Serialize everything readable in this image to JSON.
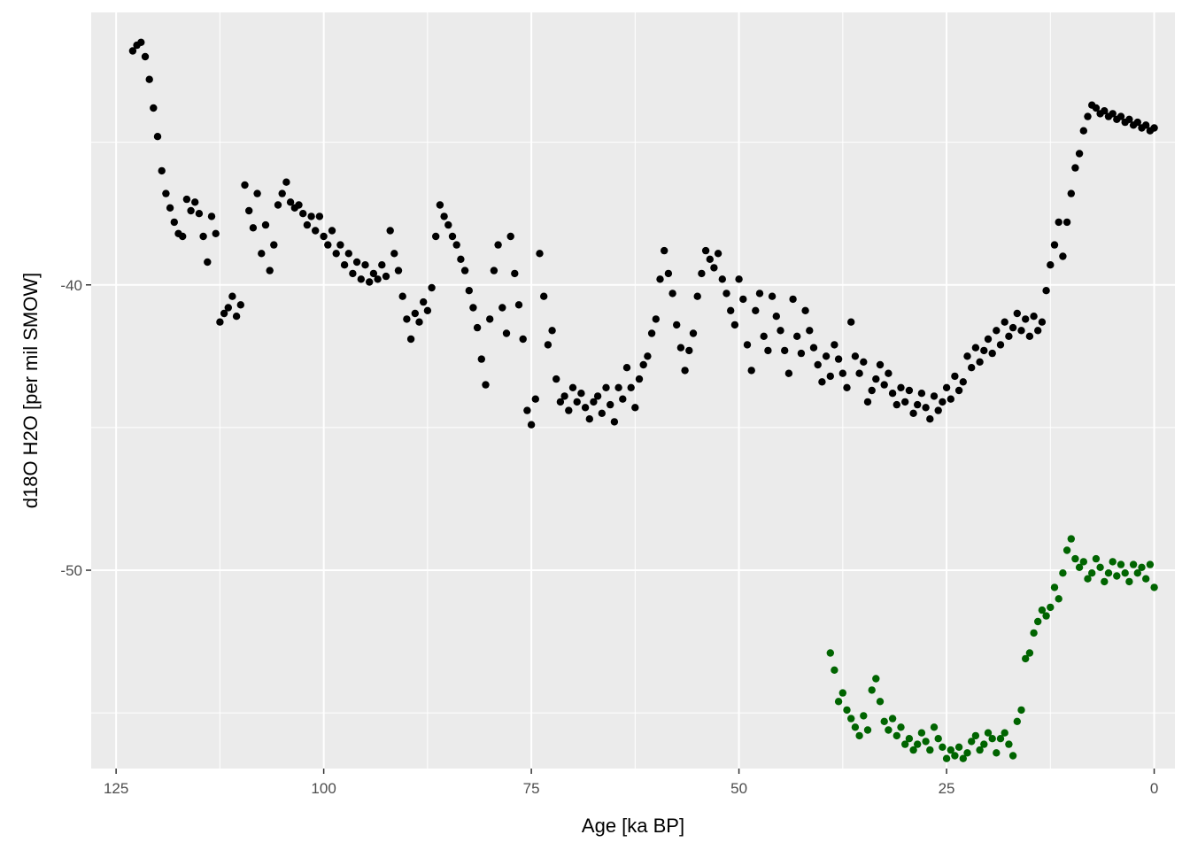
{
  "chart_data": {
    "type": "scatter",
    "title": "",
    "xlabel": "Age [ka BP]",
    "ylabel": "d18O H2O [per mil SMOW]",
    "xlim": [
      128,
      -2.5
    ],
    "x_reversed": true,
    "ylim": [
      -56.95,
      -30.45
    ],
    "x_ticks": [
      125,
      100,
      75,
      50,
      25,
      0
    ],
    "x_tick_labels": [
      "125",
      "100",
      "75",
      "50",
      "25",
      "0"
    ],
    "y_ticks": [
      -40,
      -50
    ],
    "y_tick_labels": [
      "-40",
      "-50"
    ],
    "y_minor_ticks": [
      -35,
      -45,
      -55
    ],
    "x_minor_ticks": [
      112.5,
      87.5,
      62.5,
      37.5,
      12.5
    ],
    "grid": true,
    "legend": "none",
    "colors": {
      "panel": "#ebebeb",
      "grid": "#ffffff",
      "series_1": "#000000",
      "series_2": "#006400"
    },
    "series": [
      {
        "color": "#000000",
        "x": [
          123,
          122.5,
          122,
          121.5,
          121,
          120.5,
          120,
          119.5,
          119,
          118.5,
          118,
          117.5,
          117,
          116.5,
          116,
          115.5,
          115,
          114.5,
          114,
          113.5,
          113,
          112.5,
          112,
          111.5,
          111,
          110.5,
          110,
          109.5,
          109,
          108.5,
          108,
          107.5,
          107,
          106.5,
          106,
          105.5,
          105,
          104.5,
          104,
          103.5,
          103,
          102.5,
          102,
          101.5,
          101,
          100.5,
          100,
          99.5,
          99,
          98.5,
          98,
          97.5,
          97,
          96.5,
          96,
          95.5,
          95,
          94.5,
          94,
          93.5,
          93,
          92.5,
          92,
          91.5,
          91,
          90.5,
          90,
          89.5,
          89,
          88.5,
          88,
          87.5,
          87,
          86.5,
          86,
          85.5,
          85,
          84.5,
          84,
          83.5,
          83,
          82.5,
          82,
          81.5,
          81,
          80.5,
          80,
          79.5,
          79,
          78.5,
          78,
          77.5,
          77,
          76.5,
          76,
          75.5,
          75,
          74.5,
          74,
          73.5,
          73,
          72.5,
          72,
          71.5,
          71,
          70.5,
          70,
          69.5,
          69,
          68.5,
          68,
          67.5,
          67,
          66.5,
          66,
          65.5,
          65,
          64.5,
          64,
          63.5,
          63,
          62.5,
          62,
          61.5,
          61,
          60.5,
          60,
          59.5,
          59,
          58.5,
          58,
          57.5,
          57,
          56.5,
          56,
          55.5,
          55,
          54.5,
          54,
          53.5,
          53,
          52.5,
          52,
          51.5,
          51,
          50.5,
          50,
          49.5,
          49,
          48.5,
          48,
          47.5,
          47,
          46.5,
          46,
          45.5,
          45,
          44.5,
          44,
          43.5,
          43,
          42.5,
          42,
          41.5,
          41,
          40.5,
          40,
          39.5,
          39,
          38.5,
          38,
          37.5,
          37,
          36.5,
          36,
          35.5,
          35,
          34.5,
          34,
          33.5,
          33,
          32.5,
          32,
          31.5,
          31,
          30.5,
          30,
          29.5,
          29,
          28.5,
          28,
          27.5,
          27,
          26.5,
          26,
          25.5,
          25,
          24.5,
          24,
          23.5,
          23,
          22.5,
          22,
          21.5,
          21,
          20.5,
          20,
          19.5,
          19,
          18.5,
          18,
          17.5,
          17,
          16.5,
          16,
          15.5,
          15,
          14.5,
          14,
          13.5,
          13,
          12.5,
          12,
          11.5,
          11,
          10.5,
          10,
          9.5,
          9,
          8.5,
          8,
          7.5,
          7,
          6.5,
          6,
          5.5,
          5,
          4.5,
          4,
          3.5,
          3,
          2.5,
          2,
          1.5,
          1,
          0.5,
          0
        ],
        "y": [
          -31.8,
          -31.6,
          -31.5,
          -32,
          -32.8,
          -33.8,
          -34.8,
          -36,
          -36.8,
          -37.3,
          -37.8,
          -38.2,
          -38.3,
          -37,
          -37.4,
          -37.1,
          -37.5,
          -38.3,
          -39.2,
          -37.6,
          -38.2,
          -41.3,
          -41,
          -40.8,
          -40.4,
          -41.1,
          -40.7,
          -36.5,
          -37.4,
          -38,
          -36.8,
          -38.9,
          -37.9,
          -39.5,
          -38.6,
          -37.2,
          -36.8,
          -36.4,
          -37.1,
          -37.3,
          -37.2,
          -37.5,
          -37.9,
          -37.6,
          -38.1,
          -37.6,
          -38.3,
          -38.6,
          -38.1,
          -38.9,
          -38.6,
          -39.3,
          -38.9,
          -39.6,
          -39.2,
          -39.8,
          -39.3,
          -39.9,
          -39.6,
          -39.8,
          -39.3,
          -39.7,
          -38.1,
          -38.9,
          -39.5,
          -40.4,
          -41.2,
          -41.9,
          -41,
          -41.3,
          -40.6,
          -40.9,
          -40.1,
          -38.3,
          -37.2,
          -37.6,
          -37.9,
          -38.3,
          -38.6,
          -39.1,
          -39.5,
          -40.2,
          -40.8,
          -41.5,
          -42.6,
          -43.5,
          -41.2,
          -39.5,
          -38.6,
          -40.8,
          -41.7,
          -38.3,
          -39.6,
          -40.7,
          -41.9,
          -44.4,
          -44.9,
          -44,
          -38.9,
          -40.4,
          -42.1,
          -41.6,
          -43.3,
          -44.1,
          -43.9,
          -44.4,
          -43.6,
          -44.1,
          -43.8,
          -44.3,
          -44.7,
          -44.1,
          -43.9,
          -44.5,
          -43.6,
          -44.2,
          -44.8,
          -43.6,
          -44,
          -42.9,
          -43.6,
          -44.3,
          -43.3,
          -42.8,
          -42.5,
          -41.7,
          -41.2,
          -39.8,
          -38.8,
          -39.6,
          -40.3,
          -41.4,
          -42.2,
          -43,
          -42.3,
          -41.7,
          -40.4,
          -39.6,
          -38.8,
          -39.1,
          -39.4,
          -38.9,
          -39.8,
          -40.3,
          -40.9,
          -41.4,
          -39.8,
          -40.5,
          -42.1,
          -43,
          -40.9,
          -40.3,
          -41.8,
          -42.3,
          -40.4,
          -41.1,
          -41.6,
          -42.3,
          -43.1,
          -40.5,
          -41.8,
          -42.4,
          -40.9,
          -41.6,
          -42.2,
          -42.8,
          -43.4,
          -42.5,
          -43.2,
          -42.1,
          -42.6,
          -43.1,
          -43.6,
          -41.3,
          -42.5,
          -43.1,
          -42.7,
          -44.1,
          -43.7,
          -43.3,
          -42.8,
          -43.5,
          -43.1,
          -43.8,
          -44.2,
          -43.6,
          -44.1,
          -43.7,
          -44.5,
          -44.2,
          -43.8,
          -44.3,
          -44.7,
          -43.9,
          -44.4,
          -44.1,
          -43.6,
          -44,
          -43.2,
          -43.7,
          -43.4,
          -42.5,
          -42.9,
          -42.2,
          -42.7,
          -42.3,
          -41.9,
          -42.4,
          -41.6,
          -42.1,
          -41.3,
          -41.8,
          -41.5,
          -41,
          -41.6,
          -41.2,
          -41.8,
          -41.1,
          -41.6,
          -41.3,
          -40.2,
          -39.3,
          -38.6,
          -37.8,
          -39,
          -37.8,
          -36.8,
          -35.9,
          -35.4,
          -34.6,
          -34.1,
          -33.7,
          -33.8,
          -34,
          -33.9,
          -34.1,
          -34,
          -34.2,
          -34.1,
          -34.3,
          -34.2,
          -34.4,
          -34.3,
          -34.5,
          -34.4,
          -34.6,
          -34.5
        ]
      },
      {
        "color": "#006400",
        "x": [
          39,
          38.5,
          38,
          37.5,
          37,
          36.5,
          36,
          35.5,
          35,
          34.5,
          34,
          33.5,
          33,
          32.5,
          32,
          31.5,
          31,
          30.5,
          30,
          29.5,
          29,
          28.5,
          28,
          27.5,
          27,
          26.5,
          26,
          25.5,
          25,
          24.5,
          24,
          23.5,
          23,
          22.5,
          22,
          21.5,
          21,
          20.5,
          20,
          19.5,
          19,
          18.5,
          18,
          17.5,
          17,
          16.5,
          16,
          15.5,
          15,
          14.5,
          14,
          13.5,
          13,
          12.5,
          12,
          11.5,
          11,
          10.5,
          10,
          9.5,
          9,
          8.5,
          8,
          7.5,
          7,
          6.5,
          6,
          5.5,
          5,
          4.5,
          4,
          3.5,
          3,
          2.5,
          2,
          1.5,
          1,
          0.5,
          0
        ],
        "y": [
          -52.9,
          -53.5,
          -54.6,
          -54.3,
          -54.9,
          -55.2,
          -55.5,
          -55.8,
          -55.1,
          -55.6,
          -54.2,
          -53.8,
          -54.6,
          -55.3,
          -55.6,
          -55.2,
          -55.8,
          -55.5,
          -56.1,
          -55.9,
          -56.3,
          -56.1,
          -55.7,
          -56,
          -56.3,
          -55.5,
          -55.9,
          -56.2,
          -56.6,
          -56.3,
          -56.5,
          -56.2,
          -56.6,
          -56.4,
          -56,
          -55.8,
          -56.3,
          -56.1,
          -55.7,
          -55.9,
          -56.4,
          -55.9,
          -55.7,
          -56.1,
          -56.5,
          -55.3,
          -54.9,
          -53.1,
          -52.9,
          -52.2,
          -51.8,
          -51.4,
          -51.6,
          -51.3,
          -50.6,
          -51,
          -50.1,
          -49.3,
          -48.9,
          -49.6,
          -49.9,
          -49.7,
          -50.3,
          -50.1,
          -49.6,
          -49.9,
          -50.4,
          -50.1,
          -49.7,
          -50.2,
          -49.8,
          -50.1,
          -50.4,
          -49.8,
          -50.1,
          -49.9,
          -50.3,
          -49.8,
          -50.6
        ]
      }
    ]
  }
}
